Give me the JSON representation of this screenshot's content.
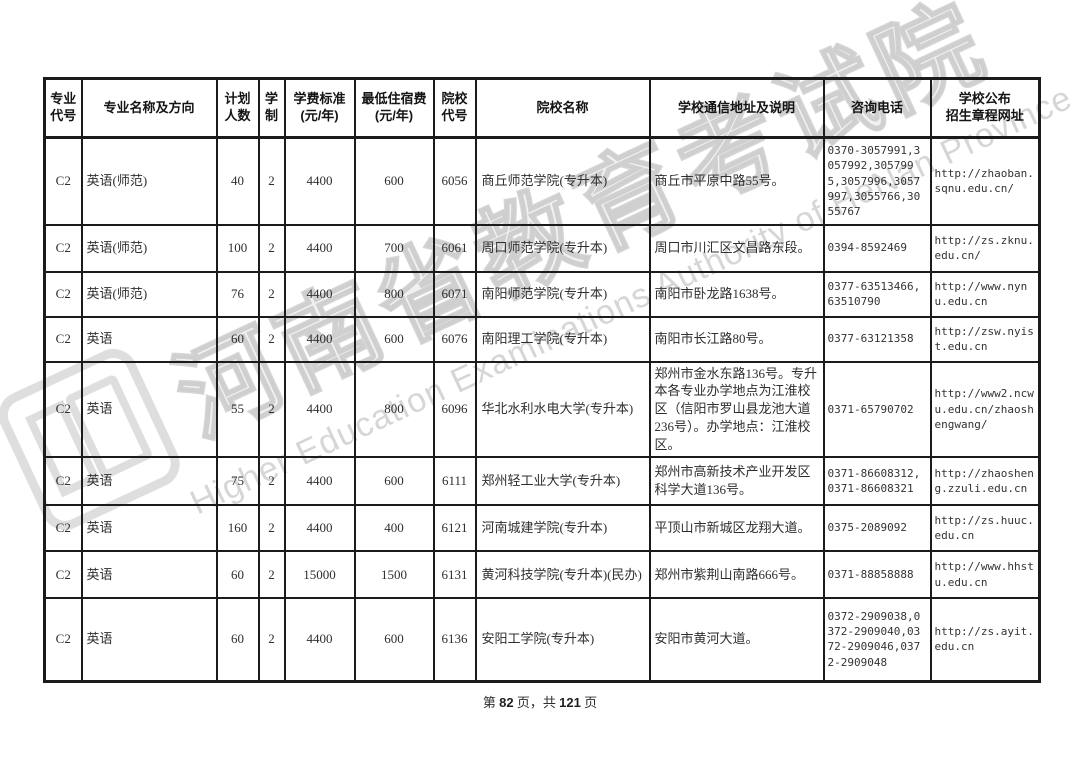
{
  "watermark": {
    "cn": "河南省教育考试院",
    "en": "Higher Education Examinations Authority of HeNan Province"
  },
  "table": {
    "headers": [
      "专业\n代号",
      "专业名称及方向",
      "计划\n人数",
      "学\n制",
      "学费标准\n(元/年)",
      "最低住宿费\n(元/年)",
      "院校\n代号",
      "院校名称",
      "学校通信地址及说明",
      "咨询电话",
      "学校公布\n招生章程网址"
    ],
    "rows": [
      {
        "code": "C2",
        "major": "英语(师范)",
        "plan": "40",
        "years": "2",
        "tuition": "4400",
        "dorm": "600",
        "college_code": "6056",
        "college": "商丘师范学院(专升本)",
        "address": "商丘市平原中路55号。",
        "phone": "0370-3057991,3057992,3057995,3057996,3057997,3055766,3055767",
        "url": "http://zhaoban.sqnu.edu.cn/"
      },
      {
        "code": "C2",
        "major": "英语(师范)",
        "plan": "100",
        "years": "2",
        "tuition": "4400",
        "dorm": "700",
        "college_code": "6061",
        "college": "周口师范学院(专升本)",
        "address": "周口市川汇区文昌路东段。",
        "phone": "0394-8592469",
        "url": "http://zs.zknu.edu.cn/"
      },
      {
        "code": "C2",
        "major": "英语(师范)",
        "plan": "76",
        "years": "2",
        "tuition": "4400",
        "dorm": "800",
        "college_code": "6071",
        "college": "南阳师范学院(专升本)",
        "address": "南阳市卧龙路1638号。",
        "phone": "0377-63513466,63510790",
        "url": "http://www.nynu.edu.cn"
      },
      {
        "code": "C2",
        "major": "英语",
        "plan": "60",
        "years": "2",
        "tuition": "4400",
        "dorm": "600",
        "college_code": "6076",
        "college": "南阳理工学院(专升本)",
        "address": "南阳市长江路80号。",
        "phone": "0377-63121358",
        "url": "http://zsw.nyist.edu.cn"
      },
      {
        "code": "C2",
        "major": "英语",
        "plan": "55",
        "years": "2",
        "tuition": "4400",
        "dorm": "800",
        "college_code": "6096",
        "college": "华北水利水电大学(专升本)",
        "address": "郑州市金水东路136号。专升本各专业办学地点为江淮校区（信阳市罗山县龙池大道236号）。办学地点：江淮校区。",
        "phone": "0371-65790702",
        "url": "http://www2.ncwu.edu.cn/zhaoshengwang/"
      },
      {
        "code": "C2",
        "major": "英语",
        "plan": "75",
        "years": "2",
        "tuition": "4400",
        "dorm": "600",
        "college_code": "6111",
        "college": "郑州轻工业大学(专升本)",
        "address": "郑州市高新技术产业开发区科学大道136号。",
        "phone": "0371-86608312,0371-86608321",
        "url": "http://zhaosheng.zzuli.edu.cn"
      },
      {
        "code": "C2",
        "major": "英语",
        "plan": "160",
        "years": "2",
        "tuition": "4400",
        "dorm": "400",
        "college_code": "6121",
        "college": "河南城建学院(专升本)",
        "address": "平顶山市新城区龙翔大道。",
        "phone": "0375-2089092",
        "url": "http://zs.huuc.edu.cn"
      },
      {
        "code": "C2",
        "major": "英语",
        "plan": "60",
        "years": "2",
        "tuition": "15000",
        "dorm": "1500",
        "college_code": "6131",
        "college": "黄河科技学院(专升本)(民办)",
        "address": "郑州市紫荆山南路666号。",
        "phone": "0371-88858888",
        "url": "http://www.hhstu.edu.cn"
      },
      {
        "code": "C2",
        "major": "英语",
        "plan": "60",
        "years": "2",
        "tuition": "4400",
        "dorm": "600",
        "college_code": "6136",
        "college": "安阳工学院(专升本)",
        "address": "安阳市黄河大道。",
        "phone": "0372-2909038,0372-2909040,0372-2909046,0372-2909048",
        "url": "http://zs.ayit.edu.cn"
      }
    ]
  },
  "footer": {
    "parts": [
      "第 ",
      "82",
      " 页，共 ",
      "121",
      " 页"
    ],
    "page_number": "82",
    "total_pages": "121"
  }
}
